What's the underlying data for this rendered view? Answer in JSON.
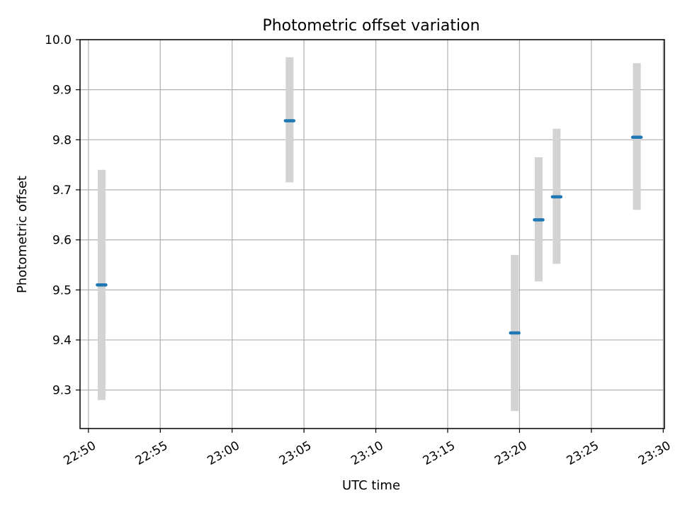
{
  "chart_data": {
    "type": "scatter",
    "title": "Photometric offset variation",
    "xlabel": "UTC time",
    "ylabel": "Photometric offset",
    "x_tick_labels": [
      "22:50",
      "22:55",
      "23:00",
      "23:05",
      "23:10",
      "23:15",
      "23:20",
      "23:25",
      "23:30"
    ],
    "y_tick_labels": [
      "9.3",
      "9.4",
      "9.5",
      "9.6",
      "9.7",
      "9.8",
      "9.9",
      "10.0"
    ],
    "xlim": [
      "22:49:25",
      "23:30:05"
    ],
    "ylim": [
      9.223,
      10.0
    ],
    "grid": true,
    "points": [
      {
        "x": "22:50:55",
        "y": 9.51,
        "yerr_low": 9.28,
        "yerr_high": 9.74
      },
      {
        "x": "23:04:00",
        "y": 9.838,
        "yerr_low": 9.715,
        "yerr_high": 9.965
      },
      {
        "x": "23:19:40",
        "y": 9.414,
        "yerr_low": 9.258,
        "yerr_high": 9.57
      },
      {
        "x": "23:21:20",
        "y": 9.64,
        "yerr_low": 9.517,
        "yerr_high": 9.765
      },
      {
        "x": "23:22:35",
        "y": 9.686,
        "yerr_low": 9.552,
        "yerr_high": 9.822
      },
      {
        "x": "23:28:10",
        "y": 9.805,
        "yerr_low": 9.66,
        "yerr_high": 9.953
      }
    ],
    "colors": {
      "marker": "#1f77b4",
      "errorbar": "#d3d3d3",
      "grid": "#b0b0b0",
      "axes": "#000000"
    }
  }
}
